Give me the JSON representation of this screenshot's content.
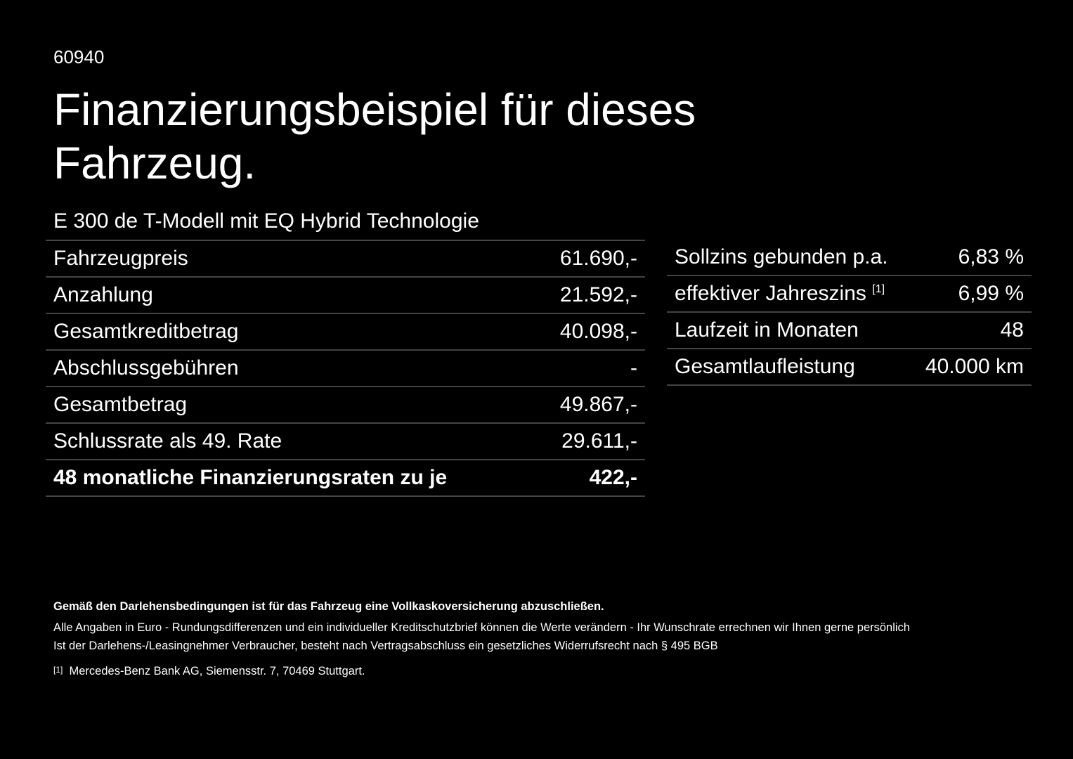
{
  "header": {
    "code": "60940",
    "title_line1": "Finanzierungsbeispiel für dieses",
    "title_line2": "Fahrzeug."
  },
  "model": "E 300 de T-Modell mit EQ Hybrid Technologie",
  "left_table": {
    "rows": [
      [
        "Fahrzeugpreis",
        "61.690,-"
      ],
      [
        "Anzahlung",
        "21.592,-"
      ],
      [
        "Gesamtkreditbetrag",
        "40.098,-"
      ],
      [
        "Abschlussgebühren",
        "-"
      ],
      [
        "Gesamtbetrag",
        "49.867,-"
      ],
      [
        "Schlussrate als 49. Rate",
        "29.611,-"
      ],
      [
        "48 monatliche Finanzierungsraten zu je",
        "422,-"
      ]
    ]
  },
  "right_table": {
    "rows": [
      [
        "Sollzins gebunden p.a.",
        "6,83 %"
      ],
      [
        "effektiver Jahreszins",
        "6,99 %"
      ],
      [
        "Laufzeit in Monaten",
        "48"
      ],
      [
        "Gesamtlaufleistung",
        "40.000 km"
      ]
    ],
    "footnote_ref": "[1]"
  },
  "footer": {
    "bold": "Gemäß den Darlehensbedingungen ist für das Fahrzeug eine Vollkaskoversicherung abzuschließen.",
    "line1": "Alle Angaben in Euro - Rundungsdifferenzen und ein individueller Kreditschutzbrief können die Werte verändern - Ihr Wunschrate errechnen wir Ihnen gerne persönlich",
    "line2": "Ist der Darlehens-/Leasingnehmer Verbraucher, besteht nach Vertragsabschluss ein gesetzliches Widerrufsrecht nach § 495 BGB",
    "note_mark": "[1]",
    "note": "Mercedes-Benz Bank AG, Siemensstr. 7, 70469 Stuttgart."
  }
}
